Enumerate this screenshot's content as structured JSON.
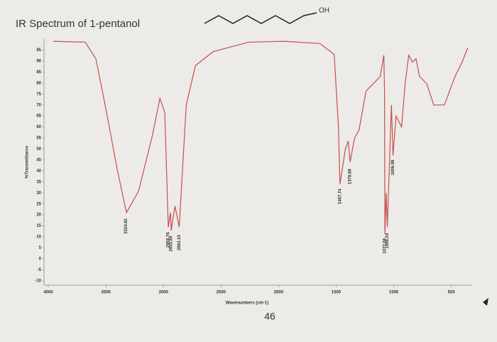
{
  "chart_data": {
    "type": "line",
    "title": "IR Spectrum of 1-pentanol",
    "molecule_label": "OH",
    "x_label": "Wavenumbers (cm-1)",
    "y_label": "%Transmittance",
    "page_number": "46",
    "xlim": [
      4000,
      350
    ],
    "ylim": [
      -12,
      100
    ],
    "xticks": [
      4000,
      3500,
      3000,
      2500,
      2000,
      1500,
      1000,
      500
    ],
    "yticks": [
      95,
      90,
      85,
      80,
      75,
      70,
      65,
      60,
      55,
      50,
      45,
      40,
      35,
      30,
      25,
      20,
      15,
      10,
      5,
      0,
      -5,
      -10
    ],
    "grid": false,
    "series": [
      {
        "name": "1-pentanol",
        "color": "#c4504c",
        "x": [
          3957,
          3679,
          3586,
          3494,
          3401,
          3321,
          3216,
          3093,
          3031,
          2988,
          2958,
          2938,
          2933,
          2900,
          2863,
          2802,
          2722,
          2568,
          2259,
          1950,
          1641,
          1517,
          1480,
          1467,
          1420,
          1395,
          1379,
          1340,
          1302,
          1240,
          1178,
          1117,
          1086,
          1080,
          1077,
          1066,
          1056,
          1020,
          1006,
          980,
          932,
          901,
          870,
          839,
          807,
          776,
          714,
          653,
          560,
          468,
          406,
          358
        ],
        "values": [
          99,
          98.6,
          91,
          66.6,
          40.5,
          21,
          30.8,
          56.8,
          73,
          66.6,
          14.4,
          21,
          12.8,
          24,
          14.4,
          70,
          88,
          94.3,
          98.6,
          99,
          98,
          93,
          60,
          34,
          50,
          53.6,
          44,
          55,
          58.5,
          76.4,
          79.7,
          83,
          92.7,
          76.4,
          11.2,
          30,
          14.4,
          70,
          47,
          65,
          60,
          79.7,
          92.7,
          89.5,
          91,
          83,
          79.7,
          70,
          70,
          83,
          89.5,
          96
        ]
      }
    ],
    "annotations": [
      {
        "label": "3324.82",
        "x": 3324.82
      },
      {
        "label": "2958.76",
        "x": 2958.76
      },
      {
        "label": "2933.69",
        "x": 2933.69
      },
      {
        "label": "2863.19",
        "x": 2863.19
      },
      {
        "label": "1467.74",
        "x": 1467.74
      },
      {
        "label": "1379.89",
        "x": 1379.89
      },
      {
        "label": "1077.08",
        "x": 1077.08
      },
      {
        "label": "1056.54",
        "x": 1056.54
      },
      {
        "label": "1006.99",
        "x": 1006.99
      }
    ]
  }
}
